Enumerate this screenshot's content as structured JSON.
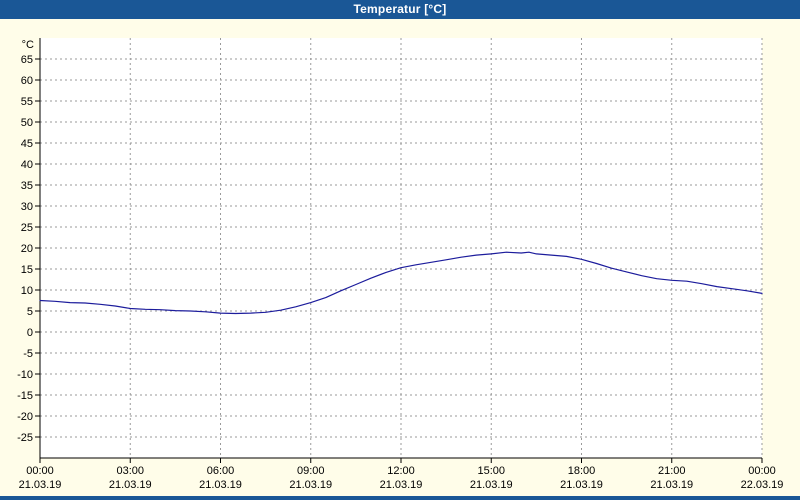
{
  "window": {
    "title": "Temperatur [°C]"
  },
  "colors": {
    "titlebar": "#1a5796",
    "background": "#fffde9",
    "plot_background": "#ffffff",
    "grid": "#9a9a9a",
    "axis": "#000000",
    "line": "#1c1c9c"
  },
  "chart_data": {
    "type": "line",
    "title": "Temperatur [°C]",
    "ylabel": "°C",
    "xlabel": "",
    "ylim": [
      -30,
      70
    ],
    "grid": "dashed",
    "legend": "none",
    "y_ticks": [
      65,
      60,
      55,
      50,
      45,
      40,
      35,
      30,
      25,
      20,
      15,
      10,
      5,
      0,
      -5,
      -10,
      -15,
      -20,
      -25
    ],
    "x_ticks": [
      {
        "hour": 0,
        "time": "00:00",
        "date": "21.03.19"
      },
      {
        "hour": 3,
        "time": "03:00",
        "date": "21.03.19"
      },
      {
        "hour": 6,
        "time": "06:00",
        "date": "21.03.19"
      },
      {
        "hour": 9,
        "time": "09:00",
        "date": "21.03.19"
      },
      {
        "hour": 12,
        "time": "12:00",
        "date": "21.03.19"
      },
      {
        "hour": 15,
        "time": "15:00",
        "date": "21.03.19"
      },
      {
        "hour": 18,
        "time": "18:00",
        "date": "21.03.19"
      },
      {
        "hour": 21,
        "time": "21:00",
        "date": "21.03.19"
      },
      {
        "hour": 24,
        "time": "00:00",
        "date": "22.03.19"
      }
    ],
    "series": [
      {
        "name": "Temperatur",
        "x_hours": [
          0,
          0.5,
          1,
          1.5,
          2,
          2.5,
          3,
          3.5,
          4,
          4.5,
          5,
          5.5,
          6,
          6.5,
          7,
          7.5,
          8,
          8.5,
          9,
          9.5,
          10,
          10.5,
          11,
          11.5,
          12,
          12.5,
          13,
          13.5,
          14,
          14.5,
          15,
          15.5,
          16,
          16.25,
          16.5,
          17,
          17.5,
          18,
          18.5,
          19,
          19.5,
          20,
          20.5,
          21,
          21.5,
          22,
          22.5,
          23,
          23.5,
          24
        ],
        "values": [
          7.5,
          7.3,
          7.0,
          6.9,
          6.6,
          6.2,
          5.6,
          5.4,
          5.3,
          5.1,
          5.0,
          4.8,
          4.5,
          4.4,
          4.5,
          4.7,
          5.2,
          6.0,
          7.0,
          8.2,
          9.8,
          11.3,
          12.8,
          14.2,
          15.3,
          16.0,
          16.6,
          17.2,
          17.8,
          18.3,
          18.6,
          19.0,
          18.8,
          19.0,
          18.6,
          18.3,
          18.0,
          17.3,
          16.3,
          15.2,
          14.3,
          13.4,
          12.7,
          12.3,
          12.1,
          11.5,
          10.8,
          10.3,
          9.8,
          9.2
        ]
      }
    ]
  }
}
